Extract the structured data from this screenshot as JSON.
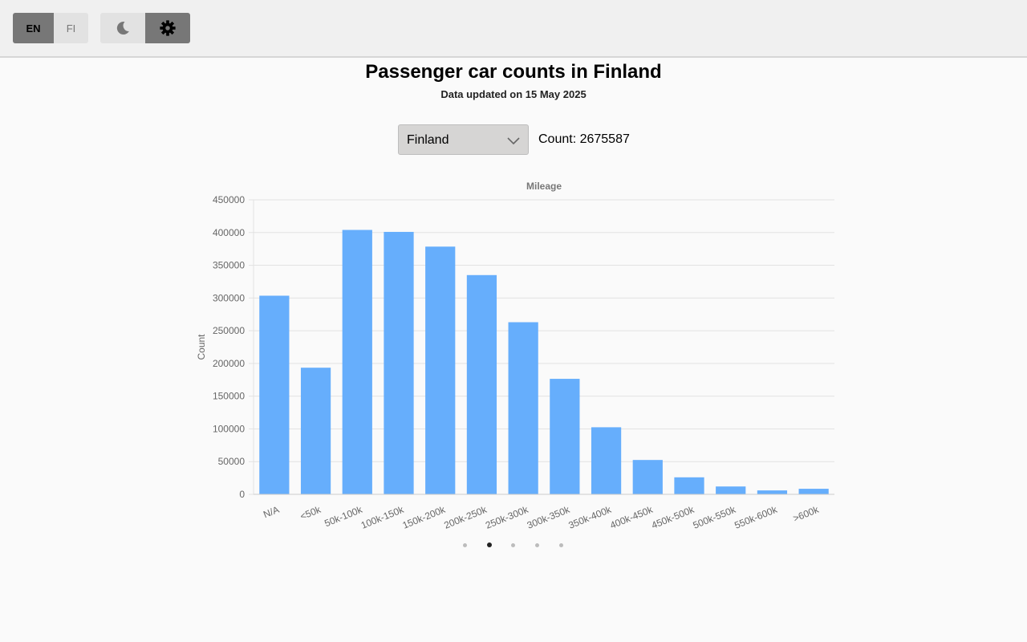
{
  "header": {
    "languages": [
      "EN",
      "FI"
    ],
    "active_language": "EN",
    "theme_icons": [
      "moon-icon",
      "gear-icon"
    ],
    "active_theme_icon": "gear-icon"
  },
  "page": {
    "title": "Passenger car counts in Finland",
    "updated": "Data updated on 15 May 2025"
  },
  "filter": {
    "region": "Finland",
    "count_text": "Count: 2675587"
  },
  "carousel": {
    "total": 5,
    "active": 1
  },
  "colors": {
    "bar": "#66aefc",
    "grid": "#e2e2e2",
    "axis_text": "#666666"
  },
  "chart_data": {
    "type": "bar",
    "title": "Mileage",
    "xlabel": "",
    "ylabel": "Count",
    "categories": [
      "N/A",
      "<50k",
      "50k-100k",
      "100k-150k",
      "150k-200k",
      "200k-250k",
      "250k-300k",
      "300k-350k",
      "350k-400k",
      "400k-450k",
      "450k-500k",
      "500k-550k",
      "550k-600k",
      ">600k"
    ],
    "values": [
      303500,
      193500,
      404000,
      401000,
      378500,
      335000,
      263000,
      176500,
      102500,
      52500,
      26000,
      12000,
      6000,
      8500
    ],
    "ylim": [
      0,
      450000
    ],
    "yticks": [
      0,
      50000,
      100000,
      150000,
      200000,
      250000,
      300000,
      350000,
      400000,
      450000
    ],
    "grid": true,
    "legend": "none"
  }
}
